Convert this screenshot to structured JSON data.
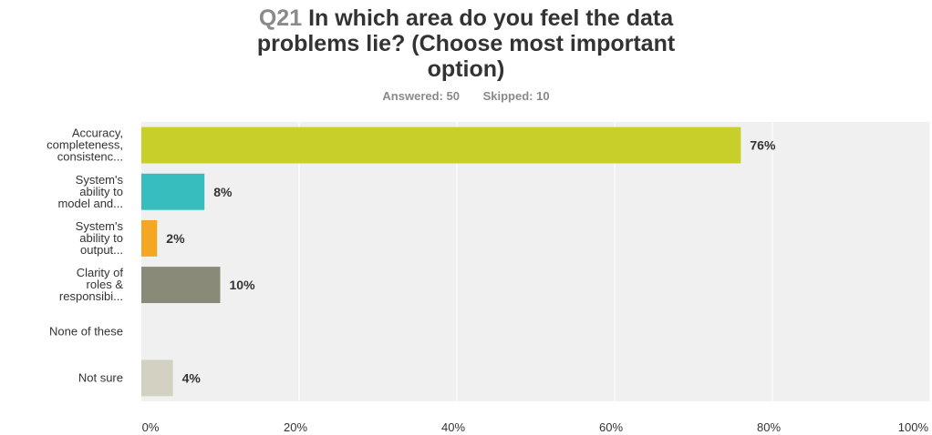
{
  "question": {
    "number": "Q21",
    "text_lines": [
      "In which area do you feel the data",
      "problems lie? (Choose most important",
      "option)"
    ]
  },
  "summary": {
    "answered": "Answered: 50",
    "skipped": "Skipped: 10"
  },
  "chart_data": {
    "type": "bar",
    "orientation": "horizontal",
    "categories": [
      [
        "Accuracy,",
        "completeness,",
        "consistenc..."
      ],
      [
        "System's",
        "ability to",
        "model and..."
      ],
      [
        "System's",
        "ability to",
        "output..."
      ],
      [
        "Clarity of",
        "roles &",
        "responsibi..."
      ],
      [
        "None of these"
      ],
      [
        "Not sure"
      ]
    ],
    "values": [
      76,
      8,
      2,
      10,
      0,
      4
    ],
    "value_labels": [
      "76%",
      "8%",
      "2%",
      "10%",
      "",
      "4%"
    ],
    "bar_colors": [
      "#c8cf2a",
      "#38bdbf",
      "#f5a623",
      "#898a78",
      "#b7b8a6",
      "#d3d1c1"
    ],
    "xlim": [
      0,
      100
    ],
    "xticks": [
      0,
      20,
      40,
      60,
      80,
      100
    ],
    "xtick_labels": [
      "0%",
      "20%",
      "40%",
      "60%",
      "80%",
      "100%"
    ],
    "grid": true,
    "plot_background": "#f0f0f0",
    "grid_color": "#ffffff"
  }
}
